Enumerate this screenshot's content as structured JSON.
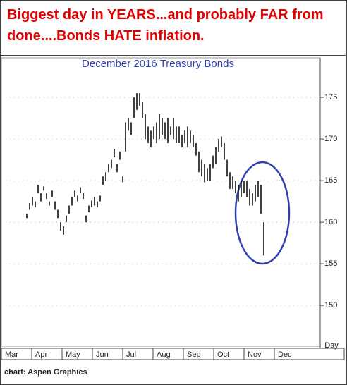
{
  "chart_data": {
    "type": "hilo",
    "title": "Biggest day in YEARS...and probably FAR from done....Bonds HATE inflation.",
    "subtitle": "December 2016 Treasury Bonds",
    "x_label": "Day",
    "source": "chart: Aspen Graphics",
    "months": [
      "Mar",
      "Apr",
      "May",
      "Jun",
      "Jul",
      "Aug",
      "Sep",
      "Oct",
      "Nov",
      "Dec"
    ],
    "ylim": [
      145.1,
      179.75
    ],
    "yticks": [
      150,
      155,
      160,
      165,
      170,
      175
    ],
    "grid": true,
    "color": "#111111",
    "high": [
      161,
      162.3,
      163,
      162.5,
      164.5,
      163.5,
      164.3,
      163.5,
      162.5,
      163.8,
      162.5,
      161.5,
      160,
      159.5,
      160.8,
      162,
      163,
      163.8,
      163.2,
      164.2,
      163.5,
      160.8,
      162,
      162.6,
      163,
      162.5,
      163.2,
      165.5,
      166,
      167,
      167.5,
      168.8,
      167,
      168.5,
      165.5,
      172,
      172.5,
      172,
      175,
      175.5,
      175.5,
      174.5,
      173,
      171.5,
      171,
      171.5,
      172,
      173,
      172.5,
      172,
      172.5,
      171.5,
      172.5,
      171.5,
      171.5,
      170.5,
      171,
      171.5,
      171,
      170.5,
      169.5,
      168.5,
      167.5,
      167,
      166.5,
      167,
      168,
      169,
      170,
      170.3,
      169.5,
      167.5,
      166,
      165.5,
      165,
      164.5,
      165,
      165,
      165,
      164,
      163.5,
      164.5,
      165,
      164.5,
      160
    ],
    "low": [
      160.5,
      161.5,
      162,
      161.8,
      163.5,
      162.5,
      163.8,
      162.8,
      162,
      163,
      161.5,
      160.5,
      159,
      158.5,
      160,
      161,
      162,
      163,
      162.5,
      163.5,
      162.8,
      160,
      161.2,
      161.8,
      162,
      161.8,
      162.5,
      164.5,
      165,
      166,
      166.5,
      167.8,
      166,
      167.5,
      164.8,
      168.5,
      171,
      170.5,
      172.5,
      173.5,
      174,
      172.5,
      170,
      169.5,
      169,
      170,
      169.5,
      170,
      170.5,
      170,
      169.5,
      170.5,
      170,
      169.5,
      169.5,
      169,
      169.5,
      169,
      169.5,
      169,
      168,
      166,
      165.5,
      164.8,
      165,
      165,
      166.5,
      167,
      168.5,
      169,
      167.5,
      165.5,
      164,
      164,
      163.5,
      162.5,
      163,
      163.5,
      163,
      162,
      162,
      162.5,
      163,
      161,
      156
    ]
  }
}
